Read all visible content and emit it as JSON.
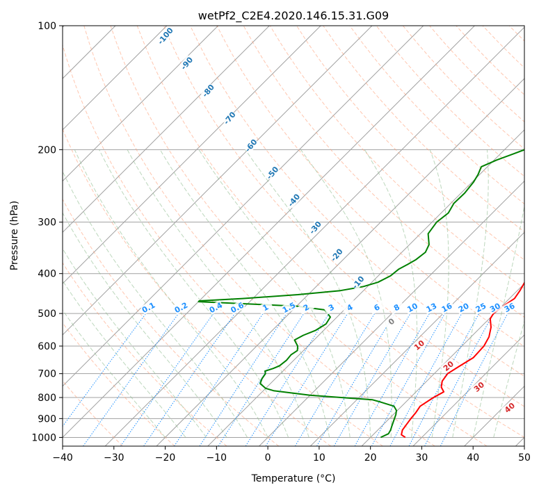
{
  "chart_data": {
    "type": "line",
    "title": "wetPf2_C2E4.2020.146.15.31.G09",
    "xlabel": "Temperature (°C)",
    "ylabel": "Pressure (hPa)",
    "xlim": [
      -40,
      50
    ],
    "ylim": [
      1050,
      100
    ],
    "y_scale": "log",
    "grid": true,
    "x_ticks": [
      -40,
      -30,
      -20,
      -10,
      0,
      10,
      20,
      30,
      40,
      50
    ],
    "y_ticks": [
      1000,
      900,
      800,
      700,
      600,
      500,
      400,
      300,
      200,
      100
    ],
    "series": [
      {
        "color": "#ff0000",
        "points": [
          [
            26.8,
            1000
          ],
          [
            25.5,
            985
          ],
          [
            24.8,
            960
          ],
          [
            24.5,
            930
          ],
          [
            24.2,
            900
          ],
          [
            24.0,
            870
          ],
          [
            23.6,
            840
          ],
          [
            24.5,
            800
          ],
          [
            25.4,
            775
          ],
          [
            24.0,
            755
          ],
          [
            23.0,
            730
          ],
          [
            22.6,
            700
          ],
          [
            23.5,
            670
          ],
          [
            24.5,
            640
          ],
          [
            24.3,
            600
          ],
          [
            23.5,
            570
          ],
          [
            22.0,
            540
          ],
          [
            20.2,
            515
          ],
          [
            19.8,
            500
          ],
          [
            20.3,
            480
          ],
          [
            21.0,
            460
          ],
          [
            20.5,
            440
          ],
          [
            19.8,
            420
          ],
          [
            18.5,
            400
          ],
          [
            17.3,
            380
          ],
          [
            15.8,
            360
          ],
          [
            14.5,
            340
          ],
          [
            12.8,
            320
          ],
          [
            11.2,
            300
          ],
          [
            9.2,
            280
          ],
          [
            7.5,
            260
          ],
          [
            6.2,
            240
          ],
          [
            5.2,
            220
          ],
          [
            4.3,
            200
          ],
          [
            3.6,
            185
          ],
          [
            2.8,
            170
          ],
          [
            1.6,
            160
          ],
          [
            0.8,
            150
          ],
          [
            0.3,
            140
          ],
          [
            0.0,
            130
          ],
          [
            -0.1,
            120
          ],
          [
            0.3,
            112
          ],
          [
            1.5,
            105
          ],
          [
            2.7,
            100
          ]
        ]
      },
      {
        "color": "#008000",
        "points": [
          [
            22.0,
            1000
          ],
          [
            22.8,
            980
          ],
          [
            22.5,
            960
          ],
          [
            22.0,
            940
          ],
          [
            21.5,
            920
          ],
          [
            21.0,
            900
          ],
          [
            20.5,
            880
          ],
          [
            19.8,
            860
          ],
          [
            18.5,
            840
          ],
          [
            15.0,
            820
          ],
          [
            13.0,
            810
          ],
          [
            0.0,
            790
          ],
          [
            -8.0,
            770
          ],
          [
            -10.0,
            760
          ],
          [
            -12.0,
            740
          ],
          [
            -12.6,
            720
          ],
          [
            -12.9,
            700
          ],
          [
            -13.5,
            690
          ],
          [
            -12.4,
            680
          ],
          [
            -11.7,
            670
          ],
          [
            -11.4,
            650
          ],
          [
            -11.6,
            630
          ],
          [
            -11.2,
            615
          ],
          [
            -12.0,
            600
          ],
          [
            -13.8,
            580
          ],
          [
            -13.0,
            565
          ],
          [
            -11.6,
            550
          ],
          [
            -10.8,
            530
          ],
          [
            -11.3,
            510
          ],
          [
            -13.8,
            490
          ],
          [
            -20.0,
            480
          ],
          [
            -40.0,
            468
          ],
          [
            -40.0,
            466
          ],
          [
            -32.0,
            460
          ],
          [
            -22.0,
            450
          ],
          [
            -14.5,
            440
          ],
          [
            -10.8,
            430
          ],
          [
            -8.8,
            420
          ],
          [
            -7.6,
            405
          ],
          [
            -7.3,
            390
          ],
          [
            -6.5,
            380
          ],
          [
            -5.8,
            370
          ],
          [
            -5.4,
            355
          ],
          [
            -6.2,
            340
          ],
          [
            -8.5,
            320
          ],
          [
            -9.1,
            300
          ],
          [
            -8.6,
            285
          ],
          [
            -9.4,
            270
          ],
          [
            -9.3,
            255
          ],
          [
            -9.7,
            240
          ],
          [
            -10.3,
            230
          ],
          [
            -11.2,
            220
          ],
          [
            -9.5,
            212
          ],
          [
            -7.5,
            205
          ],
          [
            -5.5,
            198
          ],
          [
            -3.6,
            185
          ],
          [
            -2.5,
            175
          ],
          [
            -1.8,
            165
          ],
          [
            -1.3,
            155
          ],
          [
            -1.5,
            145
          ],
          [
            -2.5,
            135
          ],
          [
            -1.4,
            122
          ],
          [
            -1.5,
            112
          ],
          [
            0.2,
            105
          ],
          [
            2.5,
            100
          ]
        ]
      }
    ],
    "dry_adiabat_labels": [
      "-100",
      "-90",
      "-80",
      "-70",
      "-60",
      "-50",
      "-40",
      "-30",
      "-20",
      "-10"
    ],
    "mixing_ratio_labels": [
      "0.1",
      "0.2",
      "0.4",
      "0.6",
      "1",
      "1.5",
      "2",
      "3",
      "4",
      "6",
      "8",
      "10",
      "13",
      "16",
      "20",
      "25",
      "30",
      "36"
    ],
    "moist_adiabat_labels": [
      "0",
      "10",
      "20",
      "30",
      "40"
    ],
    "colors": {
      "isotherm": "#a0a0a0",
      "dry_adiabat": "#ffa07a",
      "moist_adiabat": "#8fbc8f",
      "mixing_ratio": "#1e90ff",
      "dry_label": "#1f77b4",
      "mixing_label": "#1e90ff",
      "moist_label_warm": "#d62728",
      "moist_label_zero": "#808080"
    }
  }
}
